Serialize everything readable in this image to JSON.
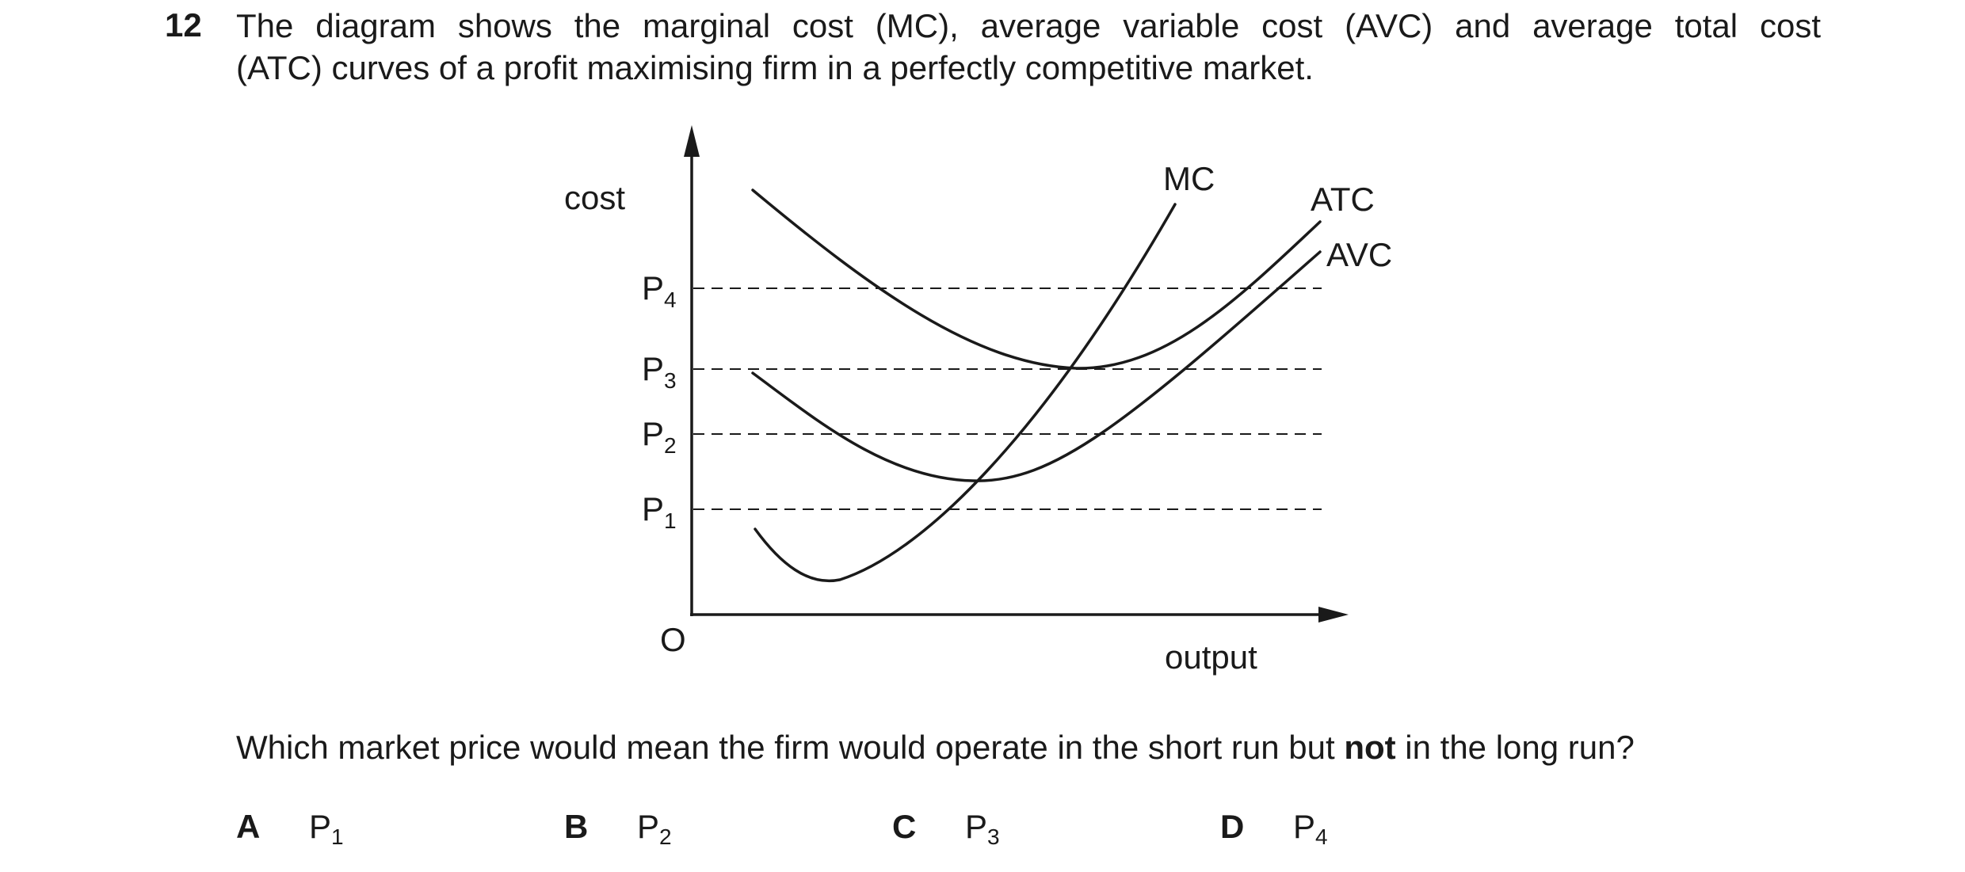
{
  "question": {
    "number": "12",
    "stem_line1": "The diagram shows the marginal cost (MC), average variable cost (AVC) and average total cost",
    "stem_line2": "(ATC) curves of a profit maximising firm in a perfectly competitive market.",
    "prompt_before": "Which market price would mean the firm would operate in the short run but ",
    "prompt_bold": "not",
    "prompt_after": " in the long run?"
  },
  "diagram": {
    "y_axis_label": "cost",
    "x_axis_label": "output",
    "origin_label": "O",
    "curve_labels": {
      "mc": "MC",
      "atc": "ATC",
      "avc": "AVC"
    },
    "price_levels": [
      {
        "base": "P",
        "sub": "4"
      },
      {
        "base": "P",
        "sub": "3"
      },
      {
        "base": "P",
        "sub": "2"
      },
      {
        "base": "P",
        "sub": "1"
      }
    ]
  },
  "options": [
    {
      "letter": "A",
      "base": "P",
      "sub": "1"
    },
    {
      "letter": "B",
      "base": "P",
      "sub": "2"
    },
    {
      "letter": "C",
      "base": "P",
      "sub": "3"
    },
    {
      "letter": "D",
      "base": "P",
      "sub": "4"
    }
  ]
}
